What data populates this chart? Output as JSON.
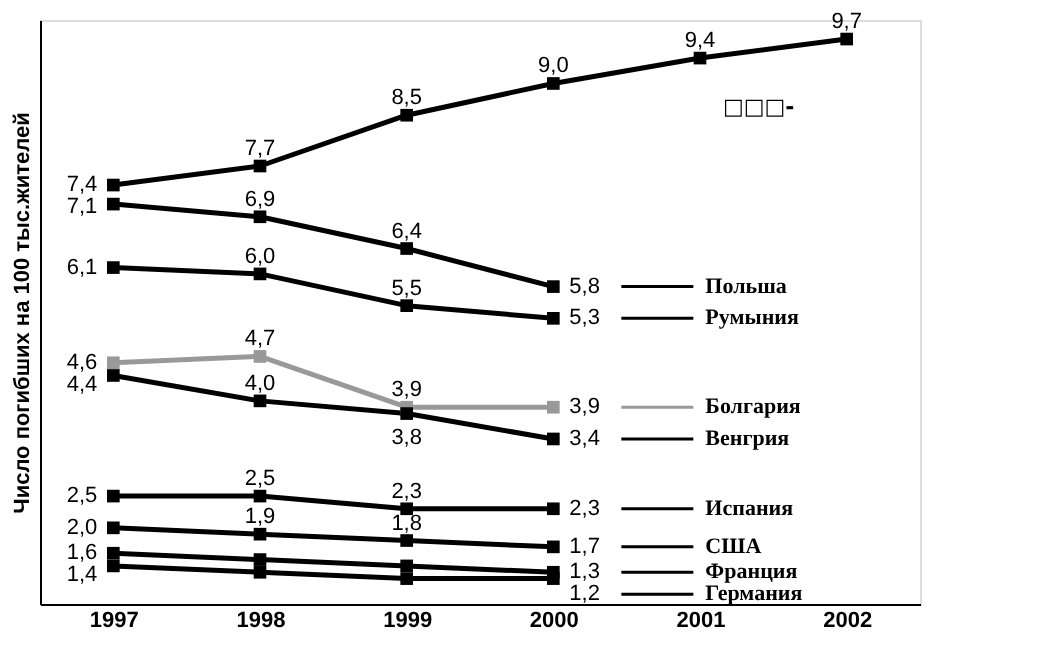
{
  "chart_data": {
    "type": "line",
    "ylabel": "Число погибших на 100 тыс.жителей",
    "categories": [
      "1997",
      "1998",
      "1999",
      "2000",
      "2001",
      "2002"
    ],
    "ylim": [
      0.8,
      10.0
    ],
    "tick_labels": "x",
    "grid": false,
    "legend": "right",
    "marker": "square",
    "line_style": "solid",
    "series": [
      {
        "color": "#000000",
        "values": [
          7.4,
          7.7,
          8.5,
          9.0,
          9.4,
          9.7
        ],
        "value_labels": [
          "7,4",
          "7,7",
          "8,5",
          "9,0",
          "9,4",
          "9,7"
        ]
      },
      {
        "name": "Польша",
        "color": "#000000",
        "values": [
          7.1,
          6.9,
          6.4,
          5.8,
          null,
          null
        ],
        "value_labels": [
          "7,1",
          "6,9",
          "6,4",
          "5,8",
          null,
          null
        ]
      },
      {
        "name": "Румыния",
        "color": "#000000",
        "values": [
          6.1,
          6.0,
          5.5,
          5.3,
          null,
          null
        ],
        "value_labels": [
          "6,1",
          "6,0",
          "5,5",
          "5,3",
          null,
          null
        ]
      },
      {
        "name": "Болгария",
        "color": "#999999",
        "values": [
          4.6,
          4.7,
          3.9,
          3.9,
          null,
          null
        ],
        "value_labels": [
          "4,6",
          "4,7",
          "3,9",
          "3,9",
          null,
          null
        ]
      },
      {
        "name": "Венгрия",
        "color": "#000000",
        "values": [
          4.4,
          4.0,
          3.8,
          3.4,
          null,
          null
        ],
        "value_labels": [
          "4,4",
          "4,0",
          "3,8",
          "3,4",
          null,
          null
        ]
      },
      {
        "name": "Испания",
        "color": "#000000",
        "values": [
          2.5,
          2.5,
          2.3,
          2.3,
          null,
          null
        ],
        "value_labels": [
          "2,5",
          "2,5",
          "2,3",
          "2,3",
          null,
          null
        ]
      },
      {
        "name": "США",
        "color": "#000000",
        "values": [
          2.0,
          1.9,
          1.8,
          1.7,
          null,
          null
        ],
        "value_labels": [
          "2,0",
          "1,9",
          "1,8",
          "1,7",
          null,
          null
        ]
      },
      {
        "name": "Франция",
        "color": "#000000",
        "values": [
          1.6,
          1.5,
          1.4,
          1.3,
          null,
          null
        ],
        "value_labels": [
          "1,6",
          null,
          null,
          "1,3",
          null,
          null
        ]
      },
      {
        "name": "Германия",
        "color": "#000000",
        "values": [
          1.4,
          1.3,
          1.2,
          1.2,
          null,
          null
        ],
        "value_labels": [
          "1,4",
          null,
          null,
          "1,2",
          null,
          null
        ]
      }
    ],
    "annotations": [
      "□□□-"
    ]
  }
}
